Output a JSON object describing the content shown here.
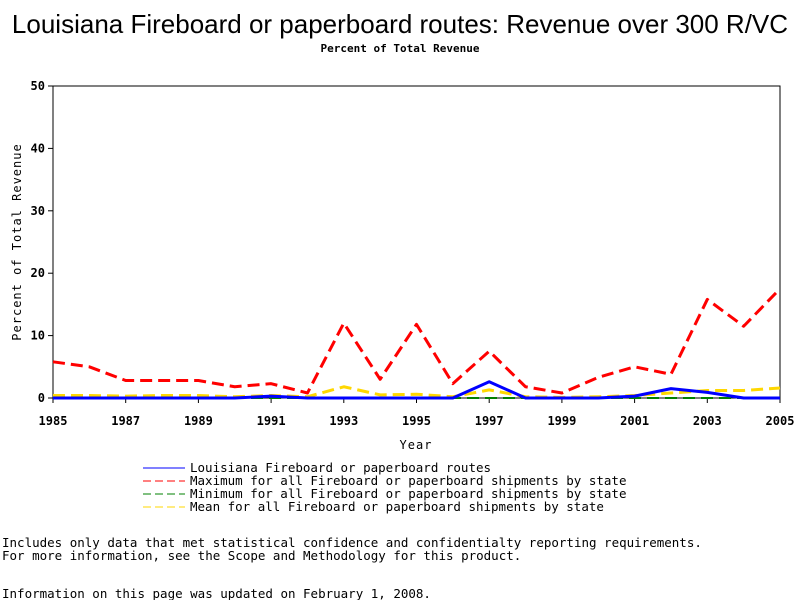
{
  "chart_data": {
    "type": "line",
    "title": "Louisiana Fireboard or paperboard routes: Revenue over 300 R/VC",
    "subtitle": "Percent of Total Revenue",
    "xlabel": "Year",
    "ylabel": "Percent of Total Revenue",
    "x": [
      1985,
      1986,
      1987,
      1988,
      1989,
      1990,
      1991,
      1992,
      1993,
      1994,
      1995,
      1996,
      1997,
      1998,
      1999,
      2000,
      2001,
      2002,
      2003,
      2004,
      2005
    ],
    "xlim": [
      1985,
      2005
    ],
    "ylim": [
      0,
      50
    ],
    "x_ticks": [
      "1985",
      "1987",
      "1989",
      "1991",
      "1993",
      "1995",
      "1997",
      "1999",
      "2001",
      "2003",
      "2005"
    ],
    "y_ticks": [
      "0",
      "10",
      "20",
      "30",
      "40",
      "50"
    ],
    "grid": false,
    "legend_position": "bottom",
    "series": [
      {
        "name": "Louisiana Fireboard or paperboard routes",
        "color": "#0000ff",
        "dash": "solid",
        "values": [
          0,
          0,
          0,
          0,
          0,
          0,
          0.3,
          0,
          0,
          0,
          0,
          0,
          2.6,
          0,
          0,
          0,
          0.3,
          1.5,
          0.9,
          0,
          0
        ]
      },
      {
        "name": "Maximum for all Fireboard or paperboard shipments by state",
        "color": "#ff0000",
        "dash": "dashed",
        "values": [
          5.8,
          5.0,
          2.8,
          2.8,
          2.8,
          1.8,
          2.3,
          0.8,
          12.0,
          3.0,
          11.8,
          2.3,
          7.5,
          1.8,
          0.8,
          3.3,
          5.0,
          3.8,
          15.8,
          11.5,
          17.5
        ]
      },
      {
        "name": "Minimum for all Fireboard or paperboard shipments by state",
        "color": "#008000",
        "dash": "dashed",
        "values": [
          0,
          0,
          0,
          0,
          0,
          0,
          0,
          0,
          0,
          0,
          0,
          0,
          0,
          0,
          0,
          0,
          0,
          0,
          0,
          0,
          0
        ]
      },
      {
        "name": "Mean for all Fireboard or paperboard shipments by state",
        "color": "#ffd700",
        "dash": "dashed",
        "values": [
          0.4,
          0.4,
          0.3,
          0.4,
          0.4,
          0.2,
          0.4,
          0.2,
          1.8,
          0.5,
          0.6,
          0.2,
          1.3,
          0.2,
          0.1,
          0.2,
          0.4,
          0.8,
          1.2,
          1.2,
          1.6
        ]
      }
    ]
  },
  "notes": [
    "Includes only data that met statistical confidence and confidentialty reporting requirements.",
    "For more information, see the Scope and Methodology for this product.",
    "Information on this page was updated on February 1, 2008."
  ]
}
